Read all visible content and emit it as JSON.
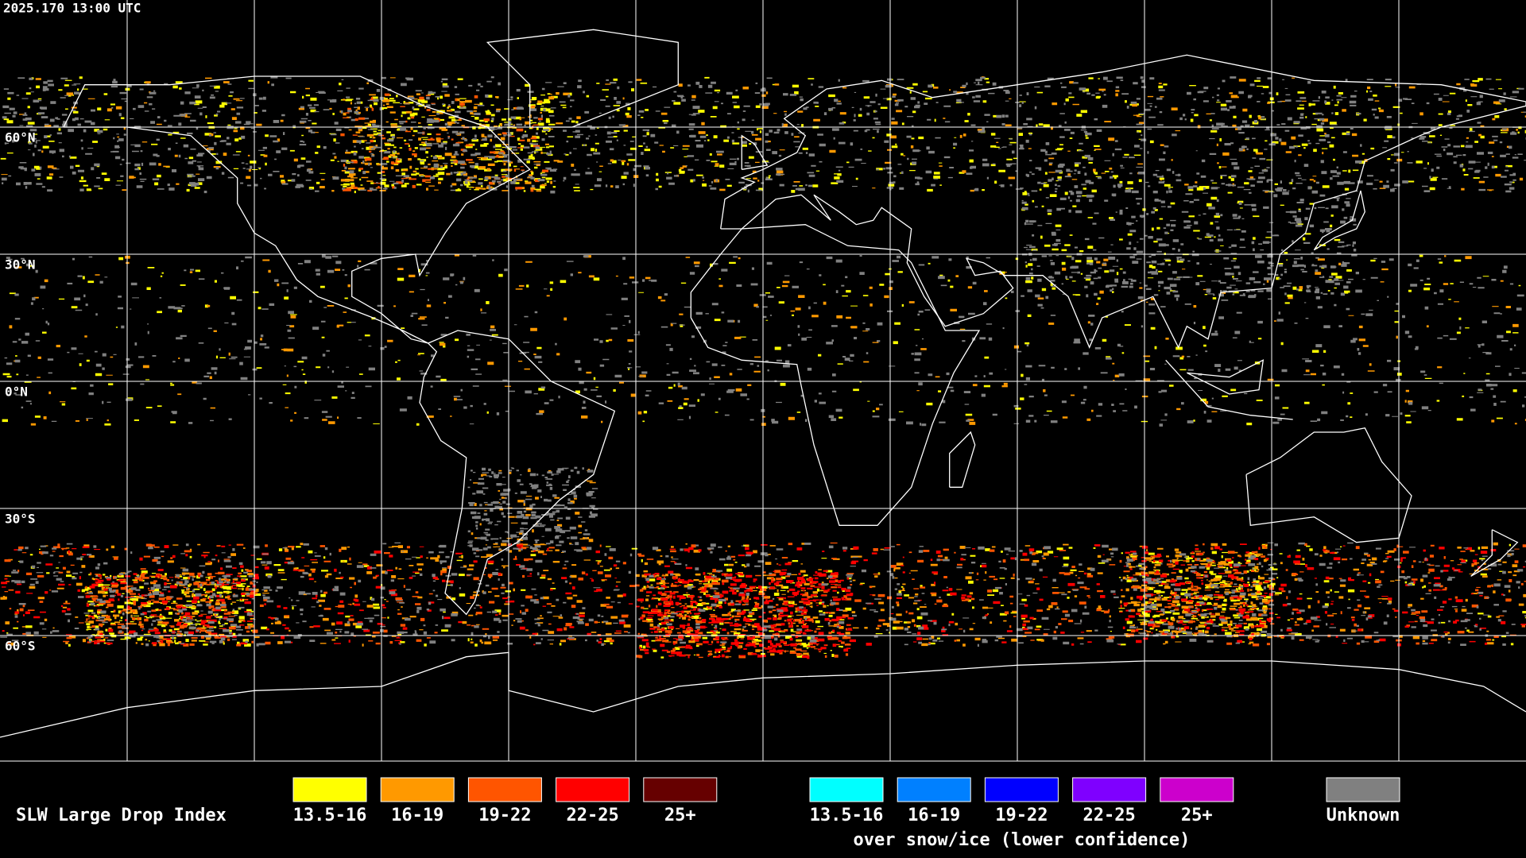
{
  "header": {
    "timestamp": "2025.170 13:00 UTC"
  },
  "map": {
    "lat_labels": [
      "60°N",
      "30°N",
      "0°N",
      "30°S",
      "60°S"
    ]
  },
  "legend": {
    "title": "SLW Large Drop Index",
    "groups": [
      {
        "entries": [
          {
            "label": "13.5-16",
            "color": "#ffff00"
          },
          {
            "label": "16-19",
            "color": "#ff9900"
          },
          {
            "label": "19-22",
            "color": "#ff5500"
          },
          {
            "label": "22-25",
            "color": "#ff0000"
          },
          {
            "label": "25+",
            "color": "#660000"
          }
        ]
      },
      {
        "entries": [
          {
            "label": "13.5-16",
            "color": "#00ffff"
          },
          {
            "label": "16-19",
            "color": "#0080ff"
          },
          {
            "label": "19-22",
            "color": "#0000ff"
          },
          {
            "label": "22-25",
            "color": "#7f00ff"
          },
          {
            "label": "25+",
            "color": "#cc00cc"
          }
        ],
        "caption": "over snow/ice (lower confidence)"
      },
      {
        "entries": [
          {
            "label": "Unknown",
            "color": "#808080"
          }
        ]
      }
    ]
  }
}
